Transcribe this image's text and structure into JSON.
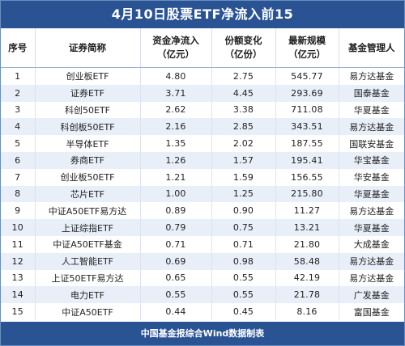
{
  "title": "4月10日股票ETF净流入前15",
  "headers": {
    "rank": "序号",
    "name": "证券简称",
    "inflow_line1": "资金净流入",
    "inflow_line2": "（亿元）",
    "share_line1": "份额变化",
    "share_line2": "（亿份）",
    "size_line1": "最新规模",
    "size_line2": "（亿元）",
    "manager": "基金管理人"
  },
  "rows": [
    {
      "rank": "1",
      "name": "创业板ETF",
      "inflow": "4.80",
      "share_change": "2.75",
      "size": "545.77",
      "manager": "易方达基金"
    },
    {
      "rank": "2",
      "name": "证券ETF",
      "inflow": "3.71",
      "share_change": "4.45",
      "size": "293.69",
      "manager": "国泰基金"
    },
    {
      "rank": "3",
      "name": "科创50ETF",
      "inflow": "2.62",
      "share_change": "3.38",
      "size": "711.08",
      "manager": "华夏基金"
    },
    {
      "rank": "4",
      "name": "科创板50ETF",
      "inflow": "2.16",
      "share_change": "2.85",
      "size": "343.51",
      "manager": "易方达基金"
    },
    {
      "rank": "5",
      "name": "半导体ETF",
      "inflow": "1.35",
      "share_change": "2.02",
      "size": "187.55",
      "manager": "国联安基金"
    },
    {
      "rank": "6",
      "name": "券商ETF",
      "inflow": "1.26",
      "share_change": "1.57",
      "size": "195.41",
      "manager": "华宝基金"
    },
    {
      "rank": "7",
      "name": "创业板50ETF",
      "inflow": "1.21",
      "share_change": "1.59",
      "size": "156.55",
      "manager": "华安基金"
    },
    {
      "rank": "8",
      "name": "芯片ETF",
      "inflow": "1.00",
      "share_change": "1.25",
      "size": "215.80",
      "manager": "华夏基金"
    },
    {
      "rank": "9",
      "name": "中证A50ETF易方达",
      "inflow": "0.89",
      "share_change": "0.90",
      "size": "11.27",
      "manager": "易方达基金"
    },
    {
      "rank": "10",
      "name": "上证综指ETF",
      "inflow": "0.79",
      "share_change": "0.75",
      "size": "13.21",
      "manager": "华夏基金"
    },
    {
      "rank": "11",
      "name": "中证A50ETF基金",
      "inflow": "0.71",
      "share_change": "0.71",
      "size": "21.80",
      "manager": "大成基金"
    },
    {
      "rank": "12",
      "name": "人工智能ETF",
      "inflow": "0.69",
      "share_change": "0.98",
      "size": "58.48",
      "manager": "易方达基金"
    },
    {
      "rank": "13",
      "name": "上证50ETF易方达",
      "inflow": "0.65",
      "share_change": "0.55",
      "size": "42.19",
      "manager": "易方达基金"
    },
    {
      "rank": "14",
      "name": "电力ETF",
      "inflow": "0.55",
      "share_change": "0.55",
      "size": "21.78",
      "manager": "广发基金"
    },
    {
      "rank": "15",
      "name": "中证A50ETF",
      "inflow": "0.44",
      "share_change": "0.45",
      "size": "8.16",
      "manager": "富国基金"
    }
  ],
  "footer": "中国基金报综合Wind数据制表",
  "colors": {
    "banner_blue": "#2a5394",
    "stripe_light_blue": "#e8eff9"
  }
}
